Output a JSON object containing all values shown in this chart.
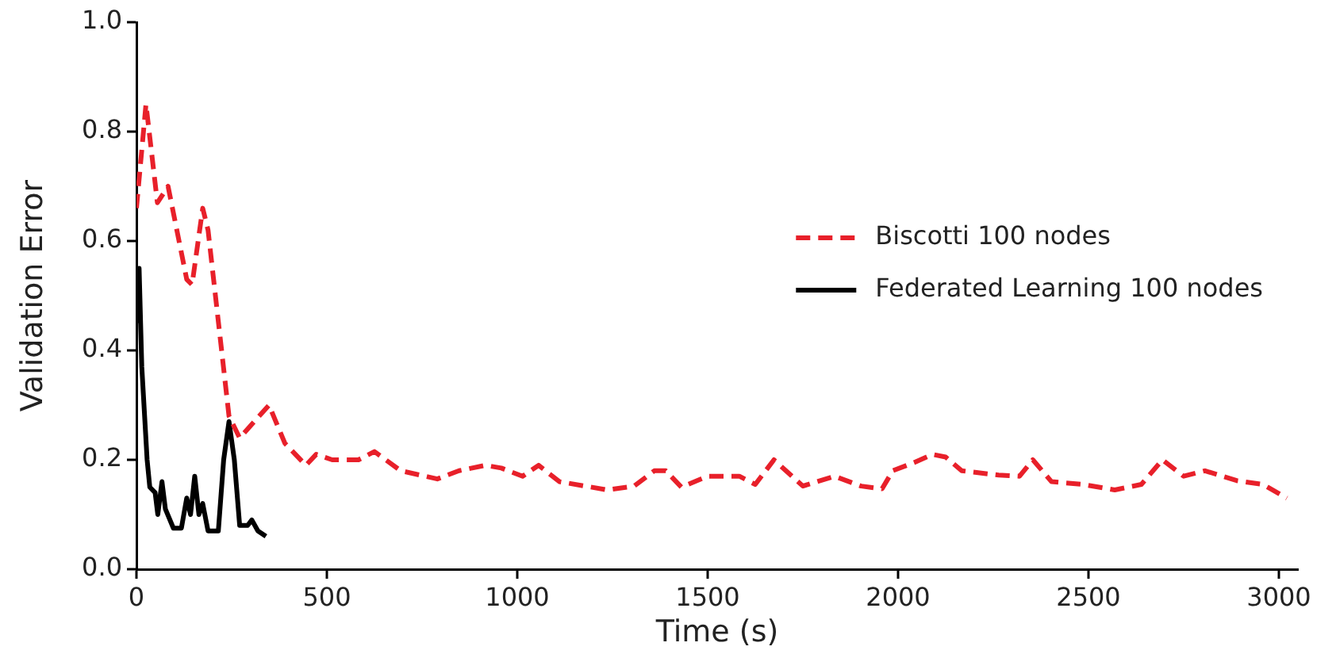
{
  "chart_data": {
    "type": "line",
    "xlabel": "Time (s)",
    "ylabel": "Validation Error",
    "xlim": [
      0,
      3050
    ],
    "xticks": [
      0,
      500,
      1000,
      1500,
      2000,
      2500,
      3000
    ],
    "ylim": [
      0,
      1
    ],
    "yticks": [
      {
        "value": 0,
        "label": "0.0"
      },
      {
        "value": 0.2,
        "label": "0.2"
      },
      {
        "value": 0.4,
        "label": "0.4"
      },
      {
        "value": 0.6,
        "label": "0.6"
      },
      {
        "value": 0.8,
        "label": "0.8"
      },
      {
        "value": 1,
        "label": "1.0"
      }
    ],
    "grid": false,
    "legend": "right",
    "marker": "none",
    "series": [
      {
        "name": "Biscotti 100 nodes",
        "color": "#e8202a",
        "line_style": "dashed",
        "x": [
          0,
          25,
          55,
          83,
          132,
          146,
          174,
          188,
          243,
          271,
          348,
          390,
          445,
          472,
          514,
          583,
          625,
          694,
          790,
          847,
          917,
          958,
          1014,
          1056,
          1111,
          1236,
          1307,
          1360,
          1390,
          1431,
          1500,
          1583,
          1625,
          1674,
          1750,
          1833,
          1903,
          1958,
          1986,
          2042,
          2090,
          2125,
          2167,
          2264,
          2319,
          2354,
          2403,
          2486,
          2569,
          2639,
          2694,
          2750,
          2806,
          2889,
          2958,
          3021
        ],
        "values": [
          0.66,
          0.85,
          0.67,
          0.7,
          0.53,
          0.52,
          0.66,
          0.62,
          0.28,
          0.24,
          0.3,
          0.23,
          0.19,
          0.21,
          0.2,
          0.2,
          0.215,
          0.18,
          0.165,
          0.18,
          0.19,
          0.185,
          0.17,
          0.19,
          0.16,
          0.145,
          0.152,
          0.18,
          0.18,
          0.15,
          0.17,
          0.17,
          0.155,
          0.2,
          0.152,
          0.17,
          0.152,
          0.147,
          0.18,
          0.195,
          0.21,
          0.205,
          0.18,
          0.172,
          0.17,
          0.2,
          0.16,
          0.155,
          0.145,
          0.155,
          0.2,
          0.17,
          0.18,
          0.162,
          0.155,
          0.13
        ]
      },
      {
        "name": "Federated Learning 100 nodes",
        "color": "#000000",
        "line_style": "solid",
        "x": [
          0,
          7,
          14,
          28,
          35,
          49,
          56,
          67,
          76,
          97,
          118,
          132,
          142,
          153,
          164,
          174,
          188,
          215,
          229,
          243,
          257,
          271,
          292,
          303,
          319,
          340
        ],
        "values": [
          0.45,
          0.55,
          0.37,
          0.2,
          0.15,
          0.14,
          0.1,
          0.16,
          0.11,
          0.075,
          0.075,
          0.13,
          0.1,
          0.17,
          0.1,
          0.12,
          0.07,
          0.07,
          0.2,
          0.27,
          0.2,
          0.08,
          0.08,
          0.09,
          0.07,
          0.06
        ]
      }
    ]
  }
}
